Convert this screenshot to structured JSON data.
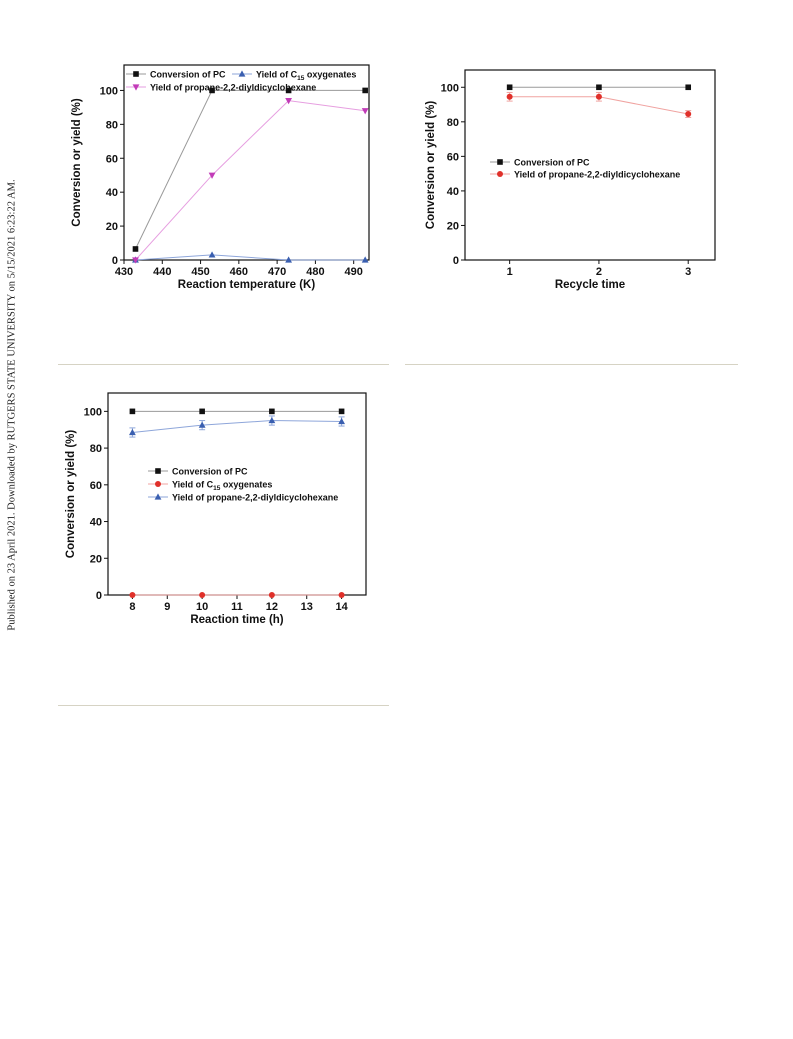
{
  "sidebar": {
    "published_note": "Published on 23 April 2021. Downloaded by RUTGERS STATE UNIVERSITY on 5/15/2021 6:23:22 AM."
  },
  "chart_data": [
    {
      "type": "line",
      "title": "",
      "xlabel": "Reaction temperature (K)",
      "ylabel": "Conversion or yield (%)",
      "xlim": [
        430,
        494
      ],
      "ylim": [
        0,
        115
      ],
      "xticks": [
        430,
        440,
        450,
        460,
        470,
        480,
        490
      ],
      "yticks": [
        0,
        20,
        40,
        60,
        80,
        100
      ],
      "legend_position": "top",
      "series": [
        {
          "name": "Conversion of PC",
          "name_main": "Conversion of PC",
          "name_sub": "",
          "name_end": "",
          "color": "#111111",
          "line_color": "#9a9a9a",
          "marker": "square",
          "x": [
            433,
            453,
            473,
            493
          ],
          "y": [
            6.5,
            100,
            100,
            100
          ]
        },
        {
          "name": "Yield of C15 oxygenates",
          "name_main": "Yield of C",
          "name_sub": "15",
          "name_end": " oxygenates",
          "color": "#3a5fb0",
          "line_color": "#8ea6da",
          "marker": "triangle-up",
          "x": [
            433,
            453,
            473,
            493
          ],
          "y": [
            0,
            3,
            0,
            0
          ]
        },
        {
          "name": "Yield of propane-2,2-diyldicyclohexane",
          "name_main": "Yield of propane-2,2-diyldicyclohexane",
          "name_sub": "",
          "name_end": "",
          "color": "#c23bb8",
          "line_color": "#e69ee0",
          "marker": "triangle-down",
          "x": [
            433,
            453,
            473,
            493
          ],
          "y": [
            0,
            50,
            94,
            88
          ]
        }
      ]
    },
    {
      "type": "line",
      "title": "",
      "xlabel": "Recycle time",
      "ylabel": "Conversion or yield (%)",
      "xlim": [
        0.5,
        3.3
      ],
      "ylim": [
        0,
        110
      ],
      "xticks": [
        1,
        2,
        3
      ],
      "yticks": [
        0,
        20,
        40,
        60,
        80,
        100
      ],
      "legend_position": "center-left",
      "series": [
        {
          "name": "Conversion of PC",
          "name_main": "Conversion of PC",
          "name_sub": "",
          "name_end": "",
          "color": "#111111",
          "line_color": "#9a9a9a",
          "marker": "square",
          "x": [
            1,
            2,
            3
          ],
          "y": [
            100,
            100,
            100
          ]
        },
        {
          "name": "Yield of propane-2,2-diyldicyclohexane",
          "name_main": "Yield of propane-2,2-diyldicyclohexane",
          "name_sub": "",
          "name_end": "",
          "color": "#e0302a",
          "line_color": "#f0a3a0",
          "marker": "circle",
          "x": [
            1,
            2,
            3
          ],
          "y": [
            94.5,
            94.5,
            84.5
          ],
          "yerr": [
            2.5,
            2.5,
            2
          ]
        }
      ]
    },
    {
      "type": "line",
      "title": "",
      "xlabel": "Reaction time (h)",
      "ylabel": "Conversion or yield (%)",
      "xlim": [
        7.3,
        14.7
      ],
      "ylim": [
        0,
        110
      ],
      "xticks": [
        8,
        9,
        10,
        11,
        12,
        13,
        14
      ],
      "yticks": [
        0,
        20,
        40,
        60,
        80,
        100
      ],
      "legend_position": "center-right",
      "series": [
        {
          "name": "Conversion of PC",
          "name_main": "Conversion of PC",
          "name_sub": "",
          "name_end": "",
          "color": "#111111",
          "line_color": "#9a9a9a",
          "marker": "square",
          "x": [
            8,
            10,
            12,
            14
          ],
          "y": [
            100,
            100,
            100,
            100
          ]
        },
        {
          "name": "Yield of C15 oxygenates",
          "name_main": "Yield of C",
          "name_sub": "15",
          "name_end": " oxygenates",
          "color": "#e0302a",
          "line_color": "#f0a3a0",
          "marker": "circle",
          "x": [
            8,
            10,
            12,
            14
          ],
          "y": [
            0,
            0,
            0,
            0
          ]
        },
        {
          "name": "Yield of propane-2,2-diyldicyclohexane",
          "name_main": "Yield of propane-2,2-diyldicyclohexane",
          "name_sub": "",
          "name_end": "",
          "color": "#3a5fb0",
          "line_color": "#8ea6da",
          "marker": "triangle-up",
          "x": [
            8,
            10,
            12,
            14
          ],
          "y": [
            88.5,
            92.5,
            95,
            94.5
          ],
          "yerr": [
            2.5,
            2.5,
            2.5,
            2.5
          ]
        }
      ]
    }
  ]
}
